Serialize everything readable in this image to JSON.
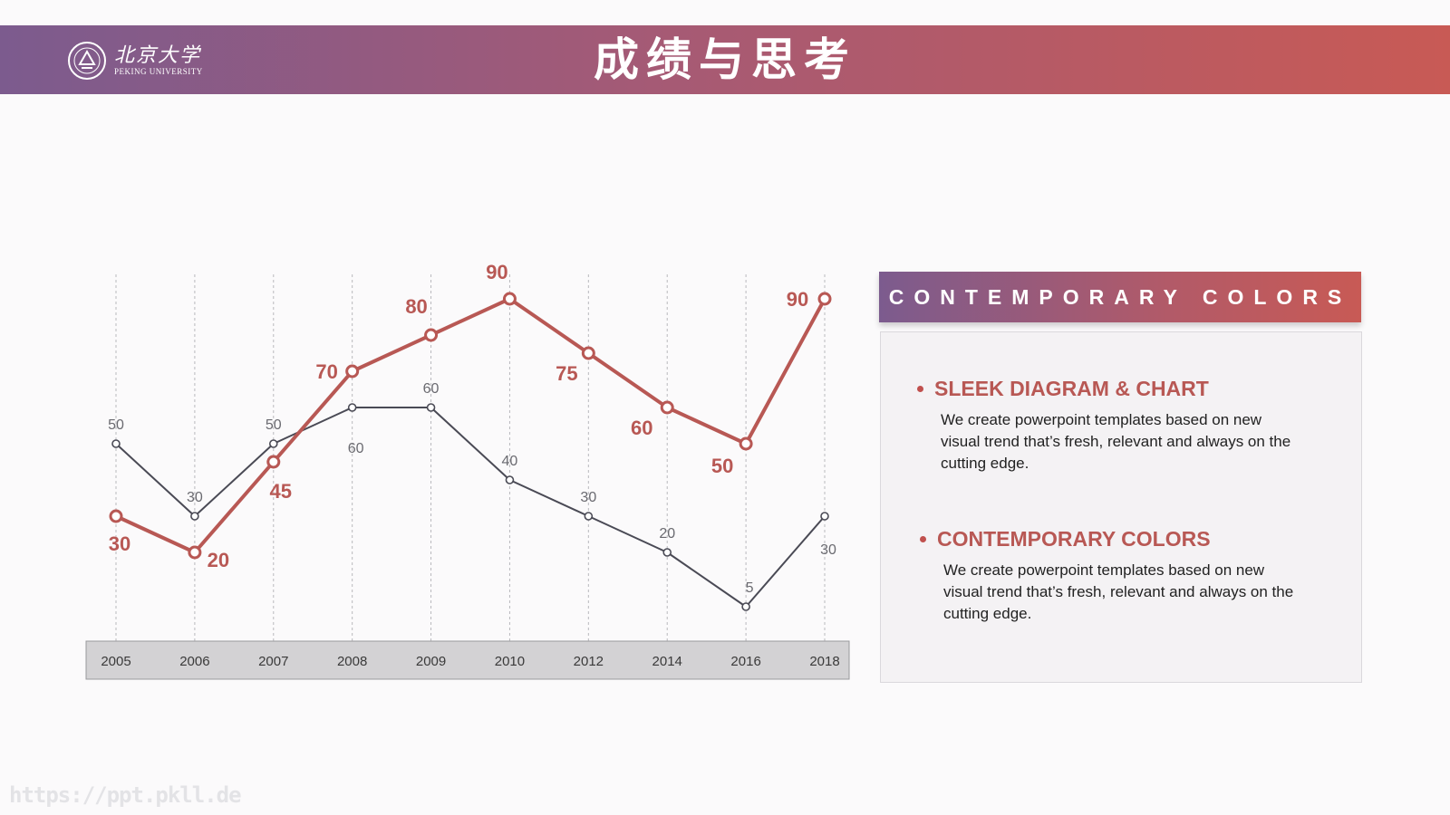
{
  "header": {
    "logo_cn": "北京大学",
    "logo_en": "PEKING UNIVERSITY",
    "title": "成绩与思考"
  },
  "chart_data": {
    "type": "line",
    "categories": [
      "2005",
      "2006",
      "2007",
      "2008",
      "2009",
      "2010",
      "2012",
      "2014",
      "2016",
      "2018"
    ],
    "series": [
      {
        "values": [
          50,
          30,
          50,
          60,
          60,
          40,
          30,
          20,
          5,
          30
        ],
        "color": "#4a4a55"
      },
      {
        "values": [
          30,
          20,
          45,
          70,
          80,
          90,
          75,
          60,
          50,
          90
        ],
        "color": "#b85854"
      }
    ],
    "ylim": [
      0,
      100
    ],
    "grid": "vertical dashed"
  },
  "panel": {
    "header": "CONTEMPORARY COLORS",
    "items": [
      {
        "title": "SLEEK DIAGRAM & CHART",
        "text": "We create powerpoint templates based on new visual trend that’s fresh, relevant and always on the cutting edge."
      },
      {
        "title": "CONTEMPORARY COLORS",
        "text": "We create powerpoint templates based on new visual trend that’s fresh, relevant and always on the cutting edge."
      }
    ]
  },
  "watermark": "https://ppt.pkll.de",
  "colors": {
    "accent_red": "#b85854",
    "accent_purple": "#7c5b8e",
    "series_dark": "#4a4a55"
  }
}
